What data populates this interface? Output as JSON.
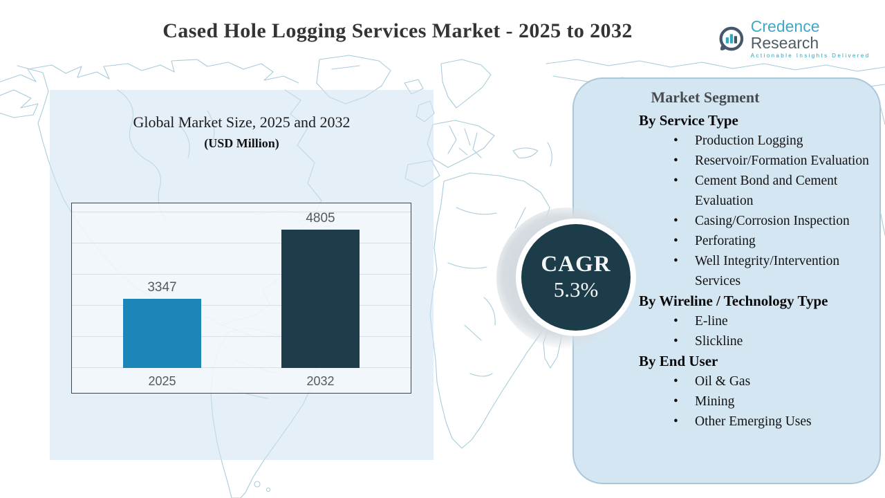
{
  "title": "Cased Hole Logging Services Market - 2025 to 2032",
  "logo": {
    "brand_primary": "Credence",
    "brand_secondary": "Research",
    "tagline": "Actionable Insights Delivered",
    "icon": "bar-chart-speech-bubble",
    "colors": {
      "teal": "#41a7c6",
      "dark": "#4f5b64"
    }
  },
  "chart_panel": {
    "title": "Global Market Size, 2025 and 2032",
    "subtitle": "(USD Million)"
  },
  "chart_data": {
    "type": "bar",
    "title": "Global Market Size, 2025 and 2032",
    "unit": "USD Million",
    "categories": [
      "2025",
      "2032"
    ],
    "values": [
      3347,
      4805
    ],
    "bar_colors": [
      "#1d86b8",
      "#1e3c49"
    ],
    "xlabel": "",
    "ylabel": "",
    "grid": true,
    "legend": false,
    "value_labels_shown": true
  },
  "cagr": {
    "label": "CAGR",
    "value": "5.3%",
    "circle_color": "#1d3c4a"
  },
  "segments": {
    "heading": "Market Segment",
    "groups": [
      {
        "title": "By Service Type",
        "items": [
          "Production Logging",
          "Reservoir/Formation Evaluation",
          "Cement Bond and Cement Evaluation",
          "Casing/Corrosion Inspection",
          "Perforating",
          "Well Integrity/Intervention Services"
        ]
      },
      {
        "title": "By Wireline / Technology Type",
        "items": [
          "E-line",
          "Slickline"
        ]
      },
      {
        "title": "By End User",
        "items": [
          "Oil & Gas",
          "Mining",
          "Other Emerging Uses"
        ]
      }
    ]
  }
}
